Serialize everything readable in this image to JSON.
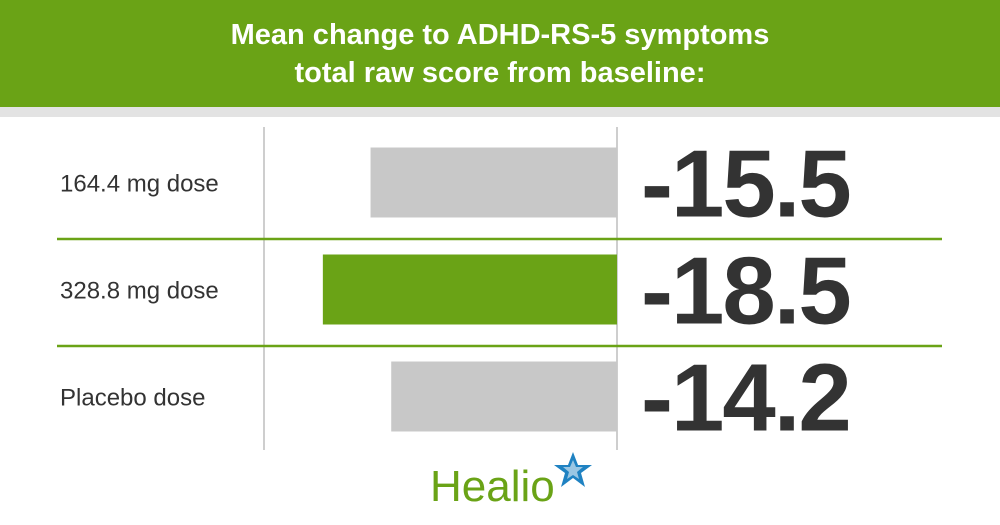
{
  "chart_data": {
    "type": "bar",
    "title_lines": [
      "Mean change to ADHD-RS-5 symptoms",
      "total raw score from baseline:"
    ],
    "categories": [
      "164.4 mg dose",
      "328.8 mg dose",
      "Placebo dose"
    ],
    "values": [
      -15.5,
      -18.5,
      -14.2
    ],
    "value_labels": [
      "-15.5",
      "-18.5",
      "-14.2"
    ],
    "bar_colors": [
      "#c8c8c8",
      "#6aa316",
      "#c8c8c8"
    ],
    "xlabel": "",
    "ylabel": ""
  },
  "colors": {
    "brand_green": "#6aa316",
    "bar_gray": "#c8c8c8",
    "text_dark": "#333333",
    "logo_blue": "#1f82c2"
  },
  "logo": {
    "text": "Healio",
    "icon": "star-icon"
  }
}
